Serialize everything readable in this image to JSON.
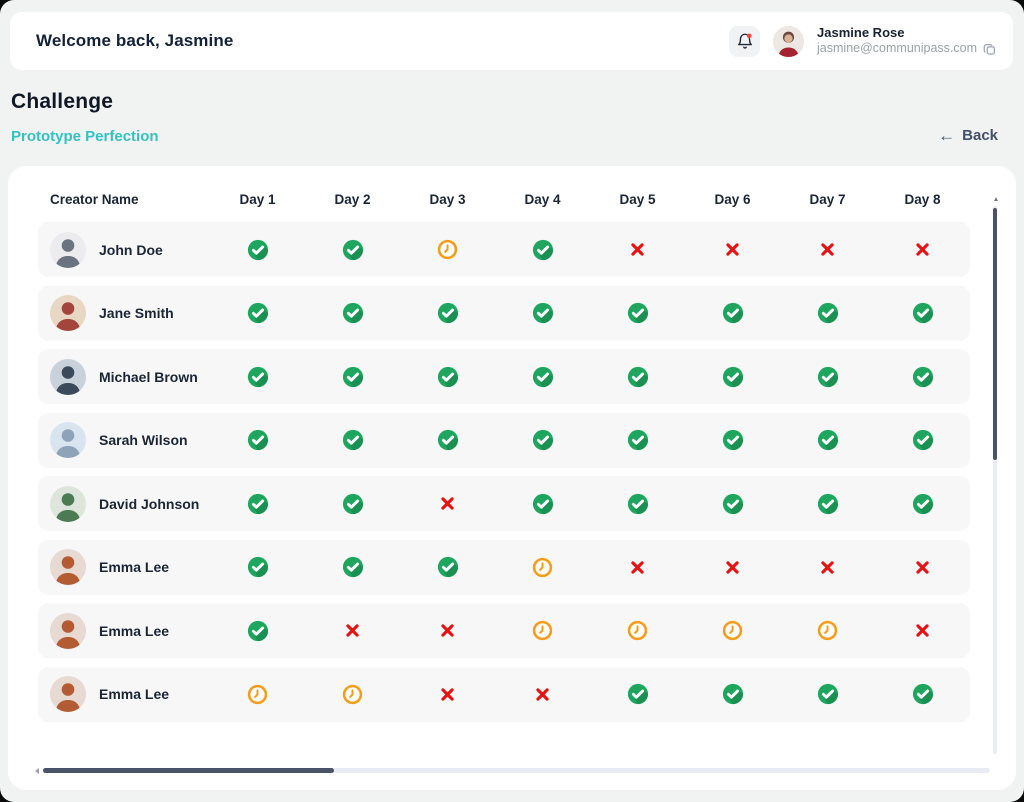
{
  "colors": {
    "done": "#1EA65F",
    "pending": "#F59C1B",
    "missed": "#E51313",
    "accent_teal": "#35C1C1"
  },
  "header": {
    "welcome": "Welcome back, Jasmine",
    "notifications": {
      "icon": "bell-icon",
      "has_unread_dot": true
    },
    "user": {
      "name": "Jasmine Rose",
      "email": "jasmine@communipass.com",
      "copy_icon": "copy-icon"
    }
  },
  "page": {
    "title": "Challenge",
    "subtitle": "Prototype Perfection",
    "back_label": "Back"
  },
  "table": {
    "name_header": "Creator Name",
    "day_headers": [
      "Day 1",
      "Day 2",
      "Day 3",
      "Day 4",
      "Day 5",
      "Day 6",
      "Day 7",
      "Day 8"
    ],
    "status_icons": {
      "done": "green-check-circle-icon",
      "pending": "orange-clock-icon",
      "missed": "red-x-icon"
    },
    "rows": [
      {
        "name": "John Doe",
        "avatar": {
          "bg": "#ECECEE",
          "fg": "#6B7280"
        },
        "statuses": [
          "done",
          "done",
          "pending",
          "done",
          "missed",
          "missed",
          "missed",
          "missed"
        ]
      },
      {
        "name": "Jane Smith",
        "avatar": {
          "bg": "#E8D8C3",
          "fg": "#A4453C"
        },
        "statuses": [
          "done",
          "done",
          "done",
          "done",
          "done",
          "done",
          "done",
          "done"
        ]
      },
      {
        "name": "Michael Brown",
        "avatar": {
          "bg": "#C9D2DA",
          "fg": "#3A4A58"
        },
        "statuses": [
          "done",
          "done",
          "done",
          "done",
          "done",
          "done",
          "done",
          "done"
        ]
      },
      {
        "name": "Sarah Wilson",
        "avatar": {
          "bg": "#D8E4EE",
          "fg": "#8FA3B8"
        },
        "statuses": [
          "done",
          "done",
          "done",
          "done",
          "done",
          "done",
          "done",
          "done"
        ]
      },
      {
        "name": "David Johnson",
        "avatar": {
          "bg": "#DDE5DC",
          "fg": "#4C7A52"
        },
        "statuses": [
          "done",
          "done",
          "missed",
          "done",
          "done",
          "done",
          "done",
          "done"
        ]
      },
      {
        "name": "Emma Lee",
        "avatar": {
          "bg": "#E6DAD3",
          "fg": "#B35C33"
        },
        "statuses": [
          "done",
          "done",
          "done",
          "pending",
          "missed",
          "missed",
          "missed",
          "missed"
        ]
      },
      {
        "name": "Emma Lee",
        "avatar": {
          "bg": "#E6DAD3",
          "fg": "#B35C33"
        },
        "statuses": [
          "done",
          "missed",
          "missed",
          "pending",
          "pending",
          "pending",
          "pending",
          "missed"
        ]
      },
      {
        "name": "Emma Lee",
        "avatar": {
          "bg": "#E6DAD3",
          "fg": "#B35C33"
        },
        "statuses": [
          "pending",
          "pending",
          "missed",
          "missed",
          "done",
          "done",
          "done",
          "done"
        ]
      }
    ]
  },
  "scrollbars": {
    "vertical": "partially-scrolled-top",
    "horizontal": "scrolled-left"
  }
}
